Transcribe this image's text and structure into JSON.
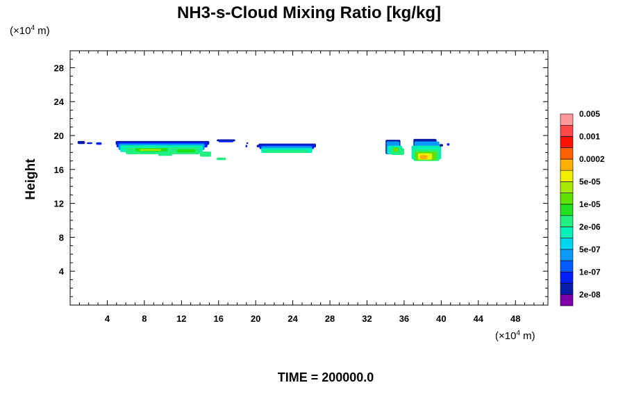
{
  "chart_data": {
    "type": "heatmap",
    "title": "NH3-s-Cloud Mixing Ratio [kg/kg]",
    "ylabel": "Height",
    "x_unit": {
      "prefix": "(×10",
      "exp": "4",
      "suffix": " m)"
    },
    "y_unit": {
      "prefix": "(×10",
      "exp": "4",
      "suffix": " m)"
    },
    "x_ticks": [
      4,
      8,
      12,
      16,
      20,
      24,
      28,
      32,
      36,
      40,
      44,
      48
    ],
    "y_ticks": [
      4,
      8,
      12,
      16,
      20,
      24,
      28
    ],
    "xlim": [
      0,
      51.5
    ],
    "ylim": [
      0,
      30
    ],
    "footer": "TIME = 200000.0",
    "colorbar": {
      "colors": [
        "#7f00a8",
        "#0a1aa8",
        "#0020ff",
        "#005cff",
        "#0a9af8",
        "#00d8f0",
        "#00f0b8",
        "#20f080",
        "#20e020",
        "#60e000",
        "#a8e800",
        "#f0f000",
        "#ffb000",
        "#ff6000",
        "#ff1000",
        "#ff4848",
        "#ff9898"
      ],
      "labels": [
        "2e-08",
        "1e-07",
        "5e-07",
        "2e-06",
        "1e-05",
        "5e-05",
        "0.0002",
        "0.001",
        "0.005"
      ]
    },
    "cloud_regions": [
      {
        "x": [
          5,
          15
        ],
        "y": [
          18,
          19.3
        ]
      },
      {
        "x": [
          20.5,
          26.5
        ],
        "y": [
          18,
          19
        ]
      },
      {
        "x": [
          34,
          36
        ],
        "y": [
          17.8,
          19.5
        ]
      },
      {
        "x": [
          37,
          40
        ],
        "y": [
          17,
          19.6
        ]
      }
    ]
  }
}
